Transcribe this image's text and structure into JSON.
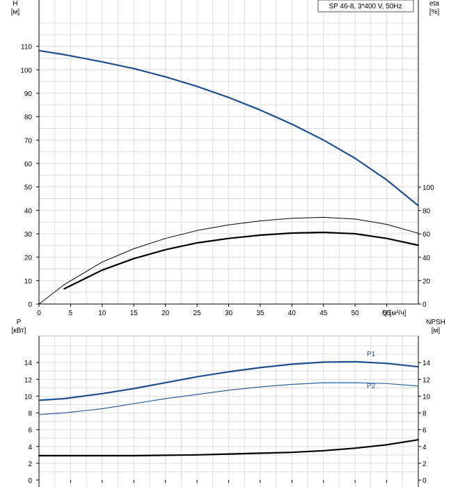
{
  "chart_data": [
    {
      "type": "line",
      "title": "SP 46-8, 3*400 V, 50Hz",
      "left_axis": {
        "label": "H",
        "unit": "[м]",
        "ylim": [
          0,
          120
        ],
        "ticks": [
          "0",
          "10",
          "20",
          "30",
          "40",
          "50",
          "60",
          "70",
          "80",
          "90",
          "100",
          "110"
        ]
      },
      "right_axis": {
        "label": "eta",
        "unit": "[%]",
        "ylim": [
          0,
          100
        ],
        "ticks": [
          "0",
          "20",
          "40",
          "60",
          "80",
          "100"
        ]
      },
      "x_axis": {
        "label": "Q [м³/ч]",
        "xlim": [
          0,
          60
        ],
        "ticks": [
          "0",
          "5",
          "10",
          "15",
          "20",
          "25",
          "30",
          "35",
          "40",
          "45",
          "50",
          "55"
        ]
      },
      "grid": true,
      "series": [
        {
          "axis": "left",
          "color": "#1f4e8c",
          "width": 2.2,
          "x": [
            0,
            4,
            10,
            15,
            20,
            25,
            30,
            35,
            40,
            45,
            50,
            55,
            60
          ],
          "y": [
            108.2,
            106.5,
            103.4,
            100.5,
            97,
            92.9,
            88.2,
            82.8,
            76.8,
            70.0,
            62.2,
            53.0,
            42.0
          ]
        },
        {
          "axis": "left",
          "color": "#000000",
          "width": 1.0,
          "x": [
            0,
            4,
            10,
            15,
            20,
            25,
            30,
            35,
            40,
            45,
            50,
            55,
            60
          ],
          "y": [
            0,
            8.3,
            17.9,
            23.6,
            28.0,
            31.4,
            33.8,
            35.5,
            36.6,
            37.0,
            36.3,
            34.0,
            30.2
          ]
        },
        {
          "axis": "left",
          "color": "#000000",
          "width": 2.2,
          "x": [
            4,
            10,
            15,
            20,
            25,
            30,
            35,
            40,
            45,
            50,
            55,
            60
          ],
          "y": [
            6.5,
            14.5,
            19.4,
            23.2,
            26.1,
            28.0,
            29.4,
            30.3,
            30.6,
            30.0,
            28.0,
            25.1
          ]
        }
      ]
    },
    {
      "type": "line",
      "left_axis": {
        "label": "P",
        "unit": "[кВт]",
        "ylim": [
          0,
          16
        ],
        "ticks": [
          "0",
          "2",
          "4",
          "6",
          "8",
          "10",
          "12",
          "14"
        ]
      },
      "right_axis": {
        "label": "NPSH",
        "unit": "[м]",
        "ylim": [
          0,
          16
        ],
        "ticks": [
          "0",
          "2",
          "4",
          "6",
          "8",
          "10",
          "12",
          "14"
        ]
      },
      "grid": true,
      "series": [
        {
          "name": "P1",
          "axis": "left",
          "color": "#1f4e8c",
          "width": 2.2,
          "x": [
            0,
            4,
            10,
            15,
            20,
            25,
            30,
            35,
            40,
            45,
            50,
            55,
            60
          ],
          "y": [
            9.5,
            9.7,
            10.3,
            10.9,
            11.6,
            12.3,
            12.9,
            13.4,
            13.8,
            14.05,
            14.1,
            13.9,
            13.5
          ]
        },
        {
          "name": "P2",
          "axis": "left",
          "color": "#2d5f9a",
          "width": 1.2,
          "x": [
            0,
            4,
            10,
            15,
            20,
            25,
            30,
            35,
            40,
            45,
            50,
            55,
            60
          ],
          "y": [
            7.8,
            8.0,
            8.5,
            9.1,
            9.7,
            10.2,
            10.7,
            11.1,
            11.4,
            11.6,
            11.6,
            11.5,
            11.2
          ]
        },
        {
          "axis": "right",
          "color": "#000000",
          "width": 2.2,
          "x": [
            0,
            4,
            10,
            15,
            20,
            25,
            30,
            35,
            40,
            45,
            50,
            55,
            60
          ],
          "y": [
            2.9,
            2.9,
            2.9,
            2.9,
            2.95,
            3.0,
            3.1,
            3.2,
            3.3,
            3.5,
            3.8,
            4.2,
            4.8
          ]
        }
      ]
    }
  ]
}
